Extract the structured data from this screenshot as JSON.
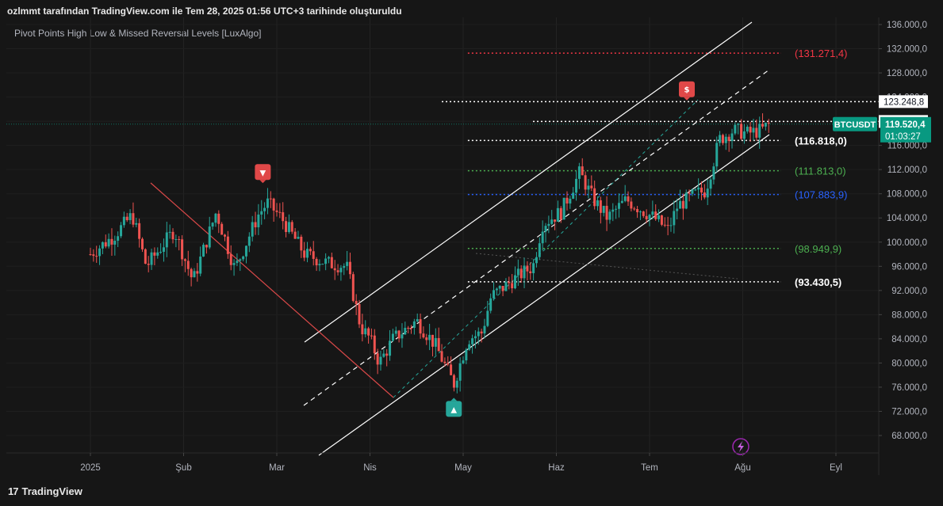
{
  "header": {
    "title": "ozlmmt tarafından TradingView.com ile Tem 28, 2025 01:56 UTC+3 tarihinde oluşturuldu",
    "indicator": "Pivot Points High Low & Missed Reversal Levels [LuxAlgo]"
  },
  "footer": {
    "brand": "TradingView"
  },
  "colors": {
    "background": "#161616",
    "up": "#26a69a",
    "down": "#ef5350",
    "red_level": "#f23645",
    "green_level": "#4caf50",
    "blue_level": "#2962ff",
    "white_level": "#ffffff",
    "accent_teal": "#089981"
  },
  "chart_data": {
    "type": "candlestick",
    "symbol": "BTCUSDT",
    "ylim": [
      66000,
      137500
    ],
    "y_ticks": [
      "136.000,0",
      "132.000,0",
      "128.000,0",
      "124.000,0",
      "120.000,0",
      "116.000,0",
      "112.000,0",
      "108.000,0",
      "104.000,0",
      "100.000,0",
      "96.000,0",
      "92.000,0",
      "88.000,0",
      "84.000,0",
      "80.000,0",
      "76.000,0",
      "72.000,0",
      "68.000,0"
    ],
    "x_ticks": [
      "2025",
      "Şub",
      "Mar",
      "Nis",
      "May",
      "Haz",
      "Tem",
      "Ağu",
      "Eyl"
    ],
    "levels": [
      {
        "label": "(131.271,4)",
        "value": 131271.4,
        "color": "#f23645",
        "style": "dotted"
      },
      {
        "label": "(116.818,0)",
        "value": 116818.0,
        "color": "#ffffff",
        "style": "dotted"
      },
      {
        "label": "(111.813,0)",
        "value": 111813.0,
        "color": "#4caf50",
        "style": "dotted"
      },
      {
        "label": "(107.883,9)",
        "value": 107883.9,
        "color": "#2962ff",
        "style": "dotted"
      },
      {
        "label": "(98.949,9)",
        "value": 98949.9,
        "color": "#4caf50",
        "style": "dotted"
      },
      {
        "label": "(93.430,5)",
        "value": 93430.5,
        "color": "#ffffff",
        "style": "dotted"
      }
    ],
    "price_labels": [
      {
        "text": "123.248,8",
        "value": 123248.8
      },
      {
        "text": "119.966,2",
        "value": 119966.2
      }
    ],
    "last_price": {
      "symbol": "BTCUSDT",
      "price": "119.520,4",
      "countdown": "01:03:27",
      "value": 119520.4
    },
    "pivot_markers": [
      {
        "type": "high",
        "label": "▼",
        "month": 1.85,
        "price": 109500
      },
      {
        "type": "low",
        "label": "▲",
        "month": 3.9,
        "price": 74500
      },
      {
        "type": "high",
        "label": "$",
        "month": 6.4,
        "price": 123200
      }
    ],
    "anchors": [
      {
        "month": 0.0,
        "price": 98000
      },
      {
        "month": 0.25,
        "price": 101000
      },
      {
        "month": 0.45,
        "price": 104500
      },
      {
        "month": 0.6,
        "price": 96000
      },
      {
        "month": 0.9,
        "price": 102000
      },
      {
        "month": 1.1,
        "price": 93500
      },
      {
        "month": 1.35,
        "price": 105000
      },
      {
        "month": 1.55,
        "price": 95500
      },
      {
        "month": 1.8,
        "price": 104500
      },
      {
        "month": 1.9,
        "price": 106500
      },
      {
        "month": 2.05,
        "price": 104000
      },
      {
        "month": 2.3,
        "price": 98000
      },
      {
        "month": 2.55,
        "price": 96500
      },
      {
        "month": 2.75,
        "price": 96000
      },
      {
        "month": 2.9,
        "price": 86000
      },
      {
        "month": 3.0,
        "price": 84000
      },
      {
        "month": 3.1,
        "price": 80000
      },
      {
        "month": 3.25,
        "price": 84000
      },
      {
        "month": 3.5,
        "price": 87000
      },
      {
        "month": 3.7,
        "price": 83000
      },
      {
        "month": 3.9,
        "price": 76500
      },
      {
        "month": 4.05,
        "price": 84000
      },
      {
        "month": 4.2,
        "price": 85000
      },
      {
        "month": 4.3,
        "price": 91000
      },
      {
        "month": 4.6,
        "price": 94500
      },
      {
        "month": 4.75,
        "price": 96000
      },
      {
        "month": 4.85,
        "price": 103000
      },
      {
        "month": 5.05,
        "price": 105000
      },
      {
        "month": 5.25,
        "price": 111500
      },
      {
        "month": 5.4,
        "price": 107000
      },
      {
        "month": 5.55,
        "price": 104000
      },
      {
        "month": 5.75,
        "price": 107000
      },
      {
        "month": 5.9,
        "price": 105500
      },
      {
        "month": 6.05,
        "price": 104000
      },
      {
        "month": 6.2,
        "price": 102000
      },
      {
        "month": 6.3,
        "price": 106000
      },
      {
        "month": 6.5,
        "price": 108000
      },
      {
        "month": 6.6,
        "price": 108500
      },
      {
        "month": 6.75,
        "price": 117000
      },
      {
        "month": 6.9,
        "price": 118500
      },
      {
        "month": 7.05,
        "price": 118000
      },
      {
        "month": 7.2,
        "price": 118500
      },
      {
        "month": 7.28,
        "price": 119520
      }
    ]
  }
}
